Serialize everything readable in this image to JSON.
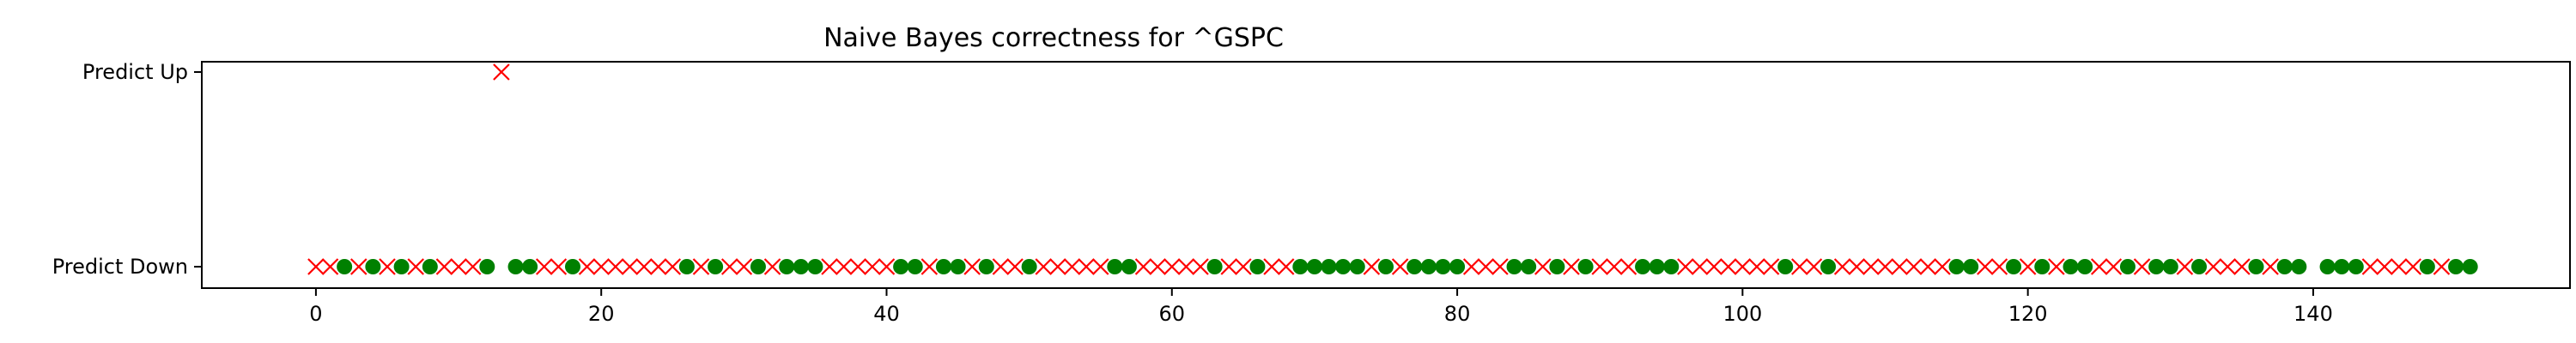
{
  "chart_data": {
    "type": "scatter",
    "title": "Naive Bayes correctness for ^GSPC",
    "xlabel": "",
    "ylabel": "",
    "xlim": [
      -8,
      158
    ],
    "x_ticks": [
      0,
      20,
      40,
      60,
      80,
      100,
      120,
      140
    ],
    "y_categories": [
      "Predict Down",
      "Predict Up"
    ],
    "legend": "none",
    "grid": false,
    "colors": {
      "correct": "#008000",
      "incorrect": "#ff0000"
    },
    "series": [
      {
        "marker": "x",
        "color": "#ff0000",
        "points": [
          [
            0,
            0
          ],
          [
            1,
            0
          ],
          [
            3,
            0
          ],
          [
            5,
            0
          ],
          [
            7,
            0
          ],
          [
            9,
            0
          ],
          [
            10,
            0
          ],
          [
            11,
            0
          ],
          [
            13,
            1
          ],
          [
            16,
            0
          ],
          [
            17,
            0
          ],
          [
            19,
            0
          ],
          [
            20,
            0
          ],
          [
            21,
            0
          ],
          [
            22,
            0
          ],
          [
            23,
            0
          ],
          [
            24,
            0
          ],
          [
            25,
            0
          ],
          [
            27,
            0
          ],
          [
            29,
            0
          ],
          [
            30,
            0
          ],
          [
            32,
            0
          ],
          [
            36,
            0
          ],
          [
            37,
            0
          ],
          [
            38,
            0
          ],
          [
            39,
            0
          ],
          [
            40,
            0
          ],
          [
            43,
            0
          ],
          [
            46,
            0
          ],
          [
            48,
            0
          ],
          [
            49,
            0
          ],
          [
            51,
            0
          ],
          [
            52,
            0
          ],
          [
            53,
            0
          ],
          [
            54,
            0
          ],
          [
            55,
            0
          ],
          [
            58,
            0
          ],
          [
            59,
            0
          ],
          [
            60,
            0
          ],
          [
            61,
            0
          ],
          [
            62,
            0
          ],
          [
            64,
            0
          ],
          [
            65,
            0
          ],
          [
            67,
            0
          ],
          [
            68,
            0
          ],
          [
            74,
            0
          ],
          [
            76,
            0
          ],
          [
            81,
            0
          ],
          [
            82,
            0
          ],
          [
            83,
            0
          ],
          [
            86,
            0
          ],
          [
            88,
            0
          ],
          [
            90,
            0
          ],
          [
            91,
            0
          ],
          [
            92,
            0
          ],
          [
            96,
            0
          ],
          [
            97,
            0
          ],
          [
            98,
            0
          ],
          [
            99,
            0
          ],
          [
            100,
            0
          ],
          [
            101,
            0
          ],
          [
            102,
            0
          ],
          [
            104,
            0
          ],
          [
            105,
            0
          ],
          [
            107,
            0
          ],
          [
            108,
            0
          ],
          [
            109,
            0
          ],
          [
            110,
            0
          ],
          [
            111,
            0
          ],
          [
            112,
            0
          ],
          [
            113,
            0
          ],
          [
            114,
            0
          ],
          [
            117,
            0
          ],
          [
            118,
            0
          ],
          [
            120,
            0
          ],
          [
            122,
            0
          ],
          [
            125,
            0
          ],
          [
            126,
            0
          ],
          [
            128,
            0
          ],
          [
            131,
            0
          ],
          [
            133,
            0
          ],
          [
            134,
            0
          ],
          [
            135,
            0
          ],
          [
            137,
            0
          ],
          [
            144,
            0
          ],
          [
            145,
            0
          ],
          [
            146,
            0
          ],
          [
            147,
            0
          ],
          [
            149,
            0
          ]
        ]
      },
      {
        "marker": "o",
        "color": "#008000",
        "points": [
          [
            2,
            0
          ],
          [
            4,
            0
          ],
          [
            6,
            0
          ],
          [
            8,
            0
          ],
          [
            12,
            0
          ],
          [
            14,
            0
          ],
          [
            15,
            0
          ],
          [
            18,
            0
          ],
          [
            26,
            0
          ],
          [
            28,
            0
          ],
          [
            31,
            0
          ],
          [
            33,
            0
          ],
          [
            34,
            0
          ],
          [
            35,
            0
          ],
          [
            41,
            0
          ],
          [
            42,
            0
          ],
          [
            44,
            0
          ],
          [
            45,
            0
          ],
          [
            47,
            0
          ],
          [
            50,
            0
          ],
          [
            56,
            0
          ],
          [
            57,
            0
          ],
          [
            63,
            0
          ],
          [
            66,
            0
          ],
          [
            69,
            0
          ],
          [
            70,
            0
          ],
          [
            71,
            0
          ],
          [
            72,
            0
          ],
          [
            73,
            0
          ],
          [
            75,
            0
          ],
          [
            77,
            0
          ],
          [
            78,
            0
          ],
          [
            79,
            0
          ],
          [
            80,
            0
          ],
          [
            84,
            0
          ],
          [
            85,
            0
          ],
          [
            87,
            0
          ],
          [
            89,
            0
          ],
          [
            93,
            0
          ],
          [
            94,
            0
          ],
          [
            95,
            0
          ],
          [
            103,
            0
          ],
          [
            106,
            0
          ],
          [
            115,
            0
          ],
          [
            116,
            0
          ],
          [
            119,
            0
          ],
          [
            121,
            0
          ],
          [
            123,
            0
          ],
          [
            124,
            0
          ],
          [
            127,
            0
          ],
          [
            129,
            0
          ],
          [
            130,
            0
          ],
          [
            132,
            0
          ],
          [
            136,
            0
          ],
          [
            138,
            0
          ],
          [
            139,
            0
          ],
          [
            141,
            0
          ],
          [
            142,
            0
          ],
          [
            143,
            0
          ],
          [
            148,
            0
          ],
          [
            150,
            0
          ],
          [
            151,
            0
          ]
        ]
      }
    ]
  }
}
